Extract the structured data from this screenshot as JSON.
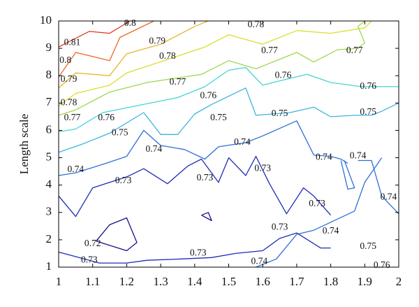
{
  "chart_data": {
    "type": "contour",
    "title": "",
    "xlabel": "",
    "ylabel": "Length scale",
    "xlim": [
      1,
      2
    ],
    "ylim": [
      1,
      10
    ],
    "grid": false,
    "x_ticks": [
      "1",
      "1.1",
      "1.2",
      "1.3",
      "1.4",
      "1.5",
      "1.6",
      "1.7",
      "1.8",
      "1.9",
      "2"
    ],
    "y_ticks": [
      "1",
      "2",
      "3",
      "4",
      "5",
      "6",
      "7",
      "8",
      "9",
      "10"
    ],
    "contours": [
      {
        "level": "0.81",
        "color": "#d83a1e",
        "paths": [
          [
            [
              1.0,
              9.05
            ],
            [
              1.09,
              9.62
            ],
            [
              1.15,
              9.55
            ],
            [
              1.21,
              10.0
            ]
          ]
        ]
      },
      {
        "level": "0.8",
        "color": "#ec6a26",
        "paths": [
          [
            [
              1.0,
              7.95
            ],
            [
              1.05,
              8.85
            ],
            [
              1.15,
              8.55
            ],
            [
              1.18,
              9.4
            ],
            [
              1.28,
              10.0
            ]
          ]
        ]
      },
      {
        "level": "0.79",
        "color": "#e7b52a",
        "paths": [
          [
            [
              1.0,
              7.55
            ],
            [
              1.05,
              8.1
            ],
            [
              1.15,
              8.0
            ],
            [
              1.2,
              8.8
            ],
            [
              1.3,
              9.15
            ],
            [
              1.4,
              9.8
            ],
            [
              1.44,
              10.0
            ]
          ]
        ]
      },
      {
        "level": "0.78",
        "color": "#d9df2b",
        "paths": [
          [
            [
              1.0,
              6.9
            ],
            [
              1.05,
              7.35
            ],
            [
              1.15,
              7.65
            ],
            [
              1.2,
              8.1
            ],
            [
              1.31,
              8.55
            ],
            [
              1.43,
              9.05
            ],
            [
              1.5,
              9.5
            ],
            [
              1.6,
              9.15
            ],
            [
              1.7,
              9.65
            ],
            [
              1.8,
              9.55
            ],
            [
              1.9,
              9.75
            ],
            [
              1.92,
              10.0
            ]
          ]
        ]
      },
      {
        "level": "0.77",
        "color": "#9ed74d",
        "paths": [
          [
            [
              1.0,
              6.55
            ],
            [
              1.05,
              6.75
            ],
            [
              1.15,
              7.4
            ],
            [
              1.26,
              7.75
            ],
            [
              1.42,
              8.05
            ],
            [
              1.5,
              8.55
            ],
            [
              1.58,
              8.25
            ],
            [
              1.7,
              8.85
            ],
            [
              1.75,
              8.5
            ],
            [
              1.82,
              8.95
            ],
            [
              1.88,
              9.0
            ],
            [
              1.9,
              9.2
            ],
            [
              1.88,
              9.8
            ],
            [
              1.9,
              10.0
            ]
          ]
        ]
      },
      {
        "level": "0.76",
        "color": "#44d3d6",
        "paths": [
          [
            [
              1.0,
              5.95
            ],
            [
              1.05,
              6.05
            ],
            [
              1.13,
              6.65
            ],
            [
              1.25,
              6.95
            ],
            [
              1.35,
              7.2
            ],
            [
              1.43,
              7.6
            ],
            [
              1.5,
              8.2
            ],
            [
              1.55,
              8.3
            ],
            [
              1.6,
              7.65
            ],
            [
              1.63,
              7.75
            ],
            [
              1.73,
              8.05
            ],
            [
              1.8,
              7.75
            ],
            [
              1.89,
              7.6
            ],
            [
              1.9,
              7.6
            ],
            [
              1.95,
              7.6
            ],
            [
              2.0,
              7.6
            ]
          ]
        ]
      },
      {
        "level": "0.75",
        "color": "#3fb4e2",
        "paths": [
          [
            [
              1.0,
              5.2
            ],
            [
              1.07,
              5.5
            ],
            [
              1.15,
              5.9
            ],
            [
              1.25,
              6.65
            ],
            [
              1.3,
              5.85
            ],
            [
              1.35,
              5.85
            ],
            [
              1.4,
              6.6
            ],
            [
              1.45,
              6.95
            ],
            [
              1.55,
              7.55
            ],
            [
              1.58,
              6.55
            ],
            [
              1.68,
              6.65
            ],
            [
              1.75,
              6.85
            ],
            [
              1.8,
              6.5
            ],
            [
              1.87,
              6.55
            ],
            [
              1.92,
              6.55
            ],
            [
              1.95,
              6.7
            ],
            [
              2.0,
              7.0
            ]
          ]
        ]
      },
      {
        "level": "0.74",
        "color": "#2f6fd6",
        "paths": [
          [
            [
              1.0,
              4.35
            ],
            [
              1.05,
              4.45
            ],
            [
              1.14,
              4.8
            ],
            [
              1.2,
              5.05
            ],
            [
              1.25,
              6.0
            ],
            [
              1.3,
              5.45
            ],
            [
              1.37,
              5.3
            ],
            [
              1.43,
              4.95
            ],
            [
              1.47,
              5.4
            ],
            [
              1.55,
              5.55
            ],
            [
              1.6,
              5.8
            ],
            [
              1.7,
              6.35
            ],
            [
              1.75,
              5.1
            ],
            [
              1.8,
              5.05
            ],
            [
              1.83,
              4.95
            ],
            [
              1.85,
              4.8
            ]
          ],
          [
            [
              1.83,
              4.9
            ],
            [
              1.85,
              3.85
            ],
            [
              1.87,
              3.9
            ],
            [
              1.84,
              4.9
            ]
          ],
          [
            [
              1.88,
              4.9
            ],
            [
              1.92,
              4.9
            ],
            [
              1.95,
              3.6
            ],
            [
              2.0,
              2.95
            ]
          ],
          [
            [
              1.95,
              5.0
            ],
            [
              1.9,
              4.1
            ],
            [
              1.87,
              3.05
            ],
            [
              1.75,
              2.35
            ],
            [
              1.7,
              2.2
            ],
            [
              1.64,
              1.3
            ],
            [
              1.58,
              1.0
            ]
          ]
        ]
      },
      {
        "level": "0.73",
        "color": "#1d2db3",
        "paths": [
          [
            [
              1.0,
              3.6
            ],
            [
              1.05,
              2.85
            ],
            [
              1.1,
              3.9
            ],
            [
              1.15,
              4.1
            ],
            [
              1.2,
              4.3
            ],
            [
              1.25,
              4.6
            ],
            [
              1.32,
              4.05
            ],
            [
              1.38,
              4.7
            ],
            [
              1.42,
              4.95
            ],
            [
              1.47,
              4.1
            ],
            [
              1.5,
              5.0
            ],
            [
              1.55,
              4.35
            ],
            [
              1.58,
              5.05
            ],
            [
              1.62,
              4.05
            ],
            [
              1.67,
              2.95
            ],
            [
              1.72,
              3.9
            ],
            [
              1.75,
              3.6
            ],
            [
              1.8,
              2.9
            ]
          ],
          [
            [
              1.0,
              1.55
            ],
            [
              1.06,
              1.35
            ],
            [
              1.12,
              1.15
            ],
            [
              1.2,
              1.15
            ],
            [
              1.26,
              1.25
            ],
            [
              1.36,
              1.3
            ],
            [
              1.45,
              1.35
            ],
            [
              1.52,
              1.5
            ],
            [
              1.6,
              1.6
            ],
            [
              1.65,
              2.05
            ],
            [
              1.7,
              2.25
            ],
            [
              1.77,
              1.7
            ],
            [
              1.8,
              1.7
            ]
          ]
        ]
      },
      {
        "level": "0.72",
        "color": "#16128a",
        "paths": [
          [
            [
              1.11,
              1.95
            ],
            [
              1.15,
              2.55
            ],
            [
              1.2,
              2.8
            ],
            [
              1.23,
              1.9
            ],
            [
              1.2,
              1.6
            ],
            [
              1.11,
              1.95
            ]
          ],
          [
            [
              1.42,
              2.9
            ],
            [
              1.44,
              3.0
            ],
            [
              1.45,
              2.7
            ],
            [
              1.42,
              2.9
            ]
          ]
        ]
      }
    ],
    "contour_labels": [
      {
        "text": "0.81",
        "x": 1.04,
        "y": 9.2
      },
      {
        "text": "0.8",
        "x": 1.21,
        "y": 9.9
      },
      {
        "text": "0.8",
        "x": 1.02,
        "y": 8.55
      },
      {
        "text": "0.79",
        "x": 1.03,
        "y": 7.85
      },
      {
        "text": "0.79",
        "x": 1.29,
        "y": 9.25
      },
      {
        "text": "0.78",
        "x": 1.03,
        "y": 7.0
      },
      {
        "text": "0.78",
        "x": 1.32,
        "y": 8.7
      },
      {
        "text": "0.78",
        "x": 1.58,
        "y": 9.85
      },
      {
        "text": "0.77",
        "x": 1.04,
        "y": 6.45
      },
      {
        "text": "0.77",
        "x": 1.35,
        "y": 7.75
      },
      {
        "text": "0.77",
        "x": 1.62,
        "y": 8.9
      },
      {
        "text": "0.77",
        "x": 1.87,
        "y": 8.9
      },
      {
        "text": "0.76",
        "x": 1.14,
        "y": 6.45
      },
      {
        "text": "0.76",
        "x": 1.44,
        "y": 7.25
      },
      {
        "text": "0.76",
        "x": 1.66,
        "y": 8.0
      },
      {
        "text": "0.76",
        "x": 1.91,
        "y": 7.6
      },
      {
        "text": "0.75",
        "x": 1.18,
        "y": 5.9
      },
      {
        "text": "0.75",
        "x": 1.47,
        "y": 6.45
      },
      {
        "text": "0.75",
        "x": 1.65,
        "y": 6.6
      },
      {
        "text": "0.75",
        "x": 1.91,
        "y": 6.65
      },
      {
        "text": "0.75",
        "x": 1.91,
        "y": 1.75
      },
      {
        "text": "0.76",
        "x": 1.95,
        "y": 1.05
      },
      {
        "text": "0.74",
        "x": 1.05,
        "y": 4.55
      },
      {
        "text": "0.74",
        "x": 1.28,
        "y": 5.3
      },
      {
        "text": "0.74",
        "x": 1.54,
        "y": 5.55
      },
      {
        "text": "0.74",
        "x": 1.78,
        "y": 5.0
      },
      {
        "text": "0.74",
        "x": 1.88,
        "y": 5.05
      },
      {
        "text": "0.74",
        "x": 1.97,
        "y": 3.55
      },
      {
        "text": "0.74",
        "x": 1.8,
        "y": 2.3
      },
      {
        "text": "0.74",
        "x": 1.59,
        "y": 1.2
      },
      {
        "text": "0.73",
        "x": 1.19,
        "y": 4.15
      },
      {
        "text": "0.73",
        "x": 1.43,
        "y": 4.25
      },
      {
        "text": "0.73",
        "x": 1.6,
        "y": 4.6
      },
      {
        "text": "0.73",
        "x": 1.76,
        "y": 3.3
      },
      {
        "text": "0.73",
        "x": 1.65,
        "y": 2.45
      },
      {
        "text": "0.73",
        "x": 1.41,
        "y": 1.5
      },
      {
        "text": "0.73",
        "x": 1.09,
        "y": 1.25
      },
      {
        "text": "0.72",
        "x": 1.1,
        "y": 1.85
      }
    ]
  }
}
